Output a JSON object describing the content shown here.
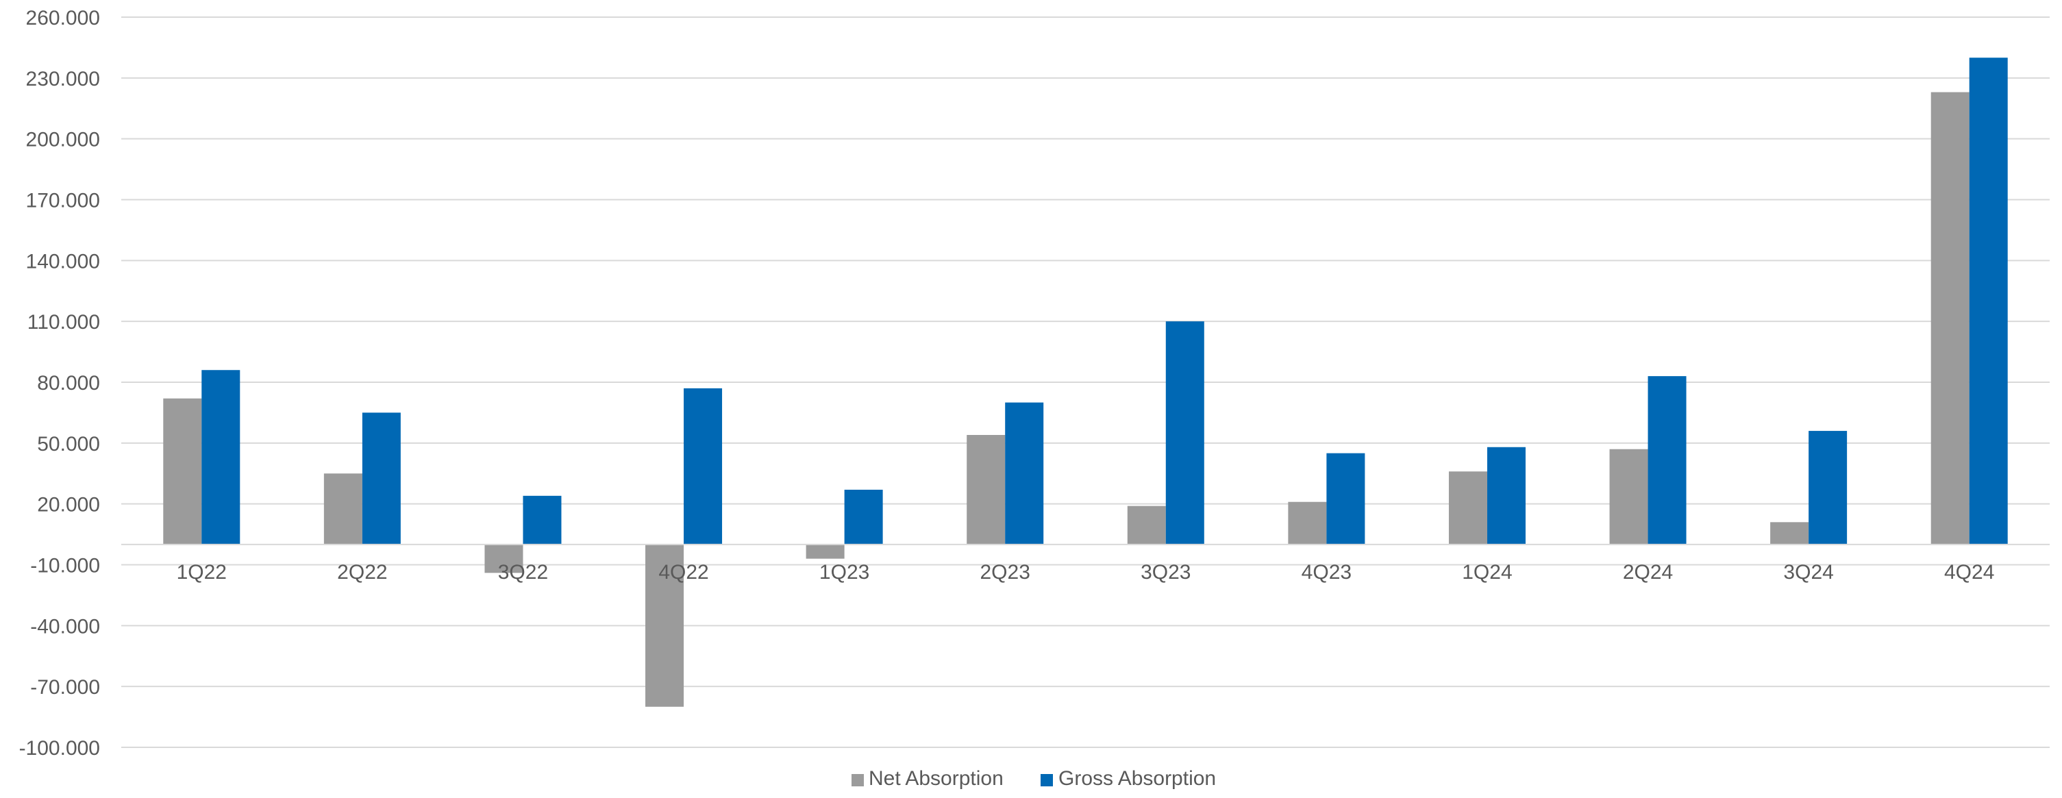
{
  "chart_data": {
    "type": "bar",
    "categories": [
      "1Q22",
      "2Q22",
      "3Q22",
      "4Q22",
      "1Q23",
      "2Q23",
      "3Q23",
      "4Q23",
      "1Q24",
      "2Q24",
      "3Q24",
      "4Q24"
    ],
    "series": [
      {
        "name": "Net Absorption",
        "color": "#9b9b9b",
        "values": [
          72000,
          35000,
          -14000,
          -80000,
          -7000,
          54000,
          19000,
          21000,
          36000,
          47000,
          11000,
          223000
        ]
      },
      {
        "name": "Gross Absorption",
        "color": "#0068b4",
        "values": [
          86000,
          65000,
          24000,
          77000,
          27000,
          70000,
          110000,
          45000,
          48000,
          83000,
          56000,
          240000
        ]
      }
    ],
    "y_ticks": [
      "260.000",
      "230.000",
      "200.000",
      "170.000",
      "140.000",
      "110.000",
      "80.000",
      "50.000",
      "20.000",
      "-10.000",
      "-40.000",
      "-70.000",
      "-100.000"
    ],
    "y_tick_values": [
      260000,
      230000,
      200000,
      170000,
      140000,
      110000,
      80000,
      50000,
      20000,
      -10000,
      -40000,
      -70000,
      -100000
    ],
    "ylim": [
      -100000,
      260000
    ],
    "grid": true,
    "legend_position": "bottom-center",
    "gridline_color": "#d9d9d9",
    "axis_color": "#d9d9d9",
    "text_color": "#595959"
  }
}
